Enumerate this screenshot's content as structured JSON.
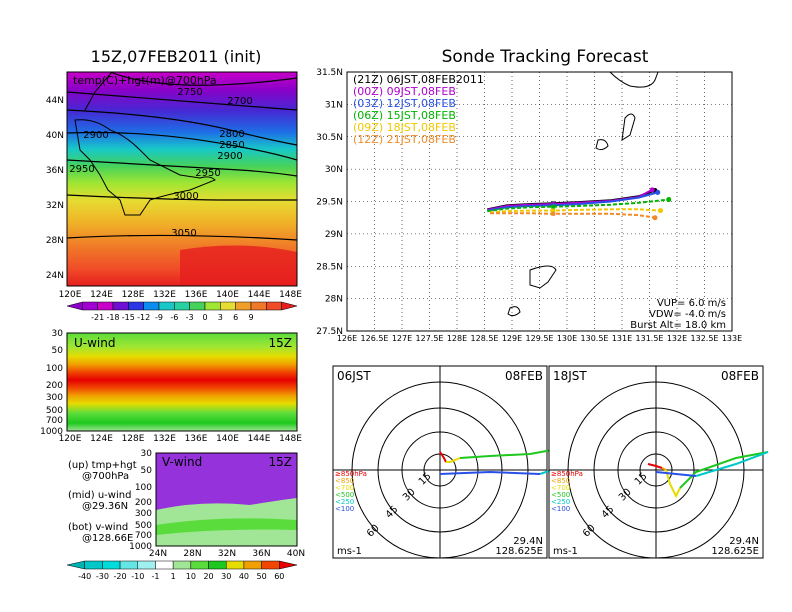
{
  "left_panel": {
    "title": "15Z,07FEB2011 (init)",
    "map_label": "temp(C)+hgt(m)@700hPa",
    "lat_ticks": [
      "44N",
      "40N",
      "36N",
      "32N",
      "28N",
      "24N"
    ],
    "lon_ticks": [
      "120E",
      "124E",
      "128E",
      "132E",
      "136E",
      "140E",
      "144E",
      "148E"
    ],
    "contours": [
      "2750",
      "2700",
      "2800",
      "2850",
      "2900",
      "2900",
      "2950",
      "2950",
      "3000",
      "3050"
    ],
    "temp_colorbar": [
      "-21",
      "-18",
      "-15",
      "-12",
      "-9",
      "-6",
      "-3",
      "0",
      "3",
      "6",
      "9"
    ],
    "temp_colors": [
      "#8c00c8",
      "#a000d2",
      "#c800c8",
      "#6e0fd2",
      "#2a36e6",
      "#0a8cf0",
      "#18c8c8",
      "#28d2a0",
      "#46d25a",
      "#a0e632",
      "#e6dc32",
      "#f0a028",
      "#f07828",
      "#f04c28",
      "#e61e1e"
    ],
    "uwind": {
      "label": "U-wind",
      "time": "15Z",
      "p_ticks": [
        "30",
        "50",
        "100",
        "200",
        "300",
        "500",
        "700",
        "1000"
      ],
      "lon_ticks": [
        "120E",
        "124E",
        "128E",
        "132E",
        "136E",
        "140E",
        "144E",
        "148E"
      ]
    },
    "vwind": {
      "label": "V-wind",
      "time": "15Z",
      "p_ticks": [
        "30",
        "50",
        "100",
        "200",
        "300",
        "500",
        "700",
        "1000"
      ],
      "lat_ticks": [
        "24N",
        "28N",
        "32N",
        "36N",
        "40N"
      ]
    },
    "legend_lines": [
      "(up) tmp+hgt",
      "@700hPa",
      "(mid) u-wind",
      "@29.36N",
      "(bot) v-wind",
      "@128.66E"
    ],
    "wind_colorbar": [
      "-40",
      "-30",
      "-20",
      "-10",
      "-1",
      "1",
      "10",
      "20",
      "30",
      "40",
      "50",
      "60"
    ],
    "wind_colors": [
      "#00b4b4",
      "#00c8c8",
      "#00dcdc",
      "#64e6e6",
      "#a0f0f0",
      "#ffffff",
      "#a0e696",
      "#5adc3c",
      "#1ec81e",
      "#e6dc00",
      "#f0a000",
      "#f04600",
      "#e60000"
    ]
  },
  "forecast": {
    "title": "Sonde Tracking Forecast",
    "lat_ticks": [
      "31.5N",
      "31N",
      "30.5N",
      "30N",
      "29.5N",
      "29N",
      "28.5N",
      "28N",
      "27.5N"
    ],
    "lon_ticks": [
      "126E",
      "126.5E",
      "127E",
      "127.5E",
      "128E",
      "128.5E",
      "129E",
      "129.5E",
      "130E",
      "130.5E",
      "131E",
      "131.5E",
      "132E",
      "132.5E",
      "133E"
    ],
    "legend": [
      {
        "text": "(21Z) 06JST,08FEB2011",
        "color": "#000000"
      },
      {
        "text": "(00Z) 09JST,08FEB",
        "color": "#b000d0"
      },
      {
        "text": "(03Z) 12JST,08FEB",
        "color": "#2850e6"
      },
      {
        "text": "(06Z) 15JST,08FEB",
        "color": "#00b400"
      },
      {
        "text": "(09Z) 18JST,08FEB",
        "color": "#f0c800"
      },
      {
        "text": "(12Z) 21JST,08FEB",
        "color": "#f08c28"
      }
    ],
    "info": [
      "VUP= 6.0 m/s",
      "VDW= -4.0 m/s",
      "Burst Alt= 18.0 km"
    ],
    "chart_data": {
      "type": "line",
      "xlim": [
        126,
        133
      ],
      "ylim": [
        27.5,
        31.5
      ],
      "series": [
        {
          "name": "(21Z) 06JST,08FEB2011",
          "color": "#000000",
          "x": [
            128.55,
            128.9,
            129.3,
            129.7,
            130.2,
            130.8,
            131.3,
            131.6
          ],
          "y": [
            29.38,
            29.44,
            29.46,
            29.47,
            29.49,
            29.52,
            29.58,
            29.67
          ]
        },
        {
          "name": "(00Z) 09JST,08FEB",
          "color": "#b000d0",
          "x": [
            128.55,
            128.9,
            129.3,
            129.7,
            130.2,
            130.8,
            131.3,
            131.55
          ],
          "y": [
            29.37,
            29.43,
            29.45,
            29.46,
            29.48,
            29.51,
            29.57,
            29.68
          ]
        },
        {
          "name": "(03Z) 12JST,08FEB",
          "color": "#2850e6",
          "x": [
            128.55,
            128.9,
            129.3,
            129.7,
            130.2,
            130.8,
            131.3,
            131.65
          ],
          "y": [
            29.36,
            29.41,
            29.43,
            29.44,
            29.46,
            29.5,
            29.56,
            29.64
          ]
        },
        {
          "name": "(06Z) 15JST,08FEB",
          "color": "#00b400",
          "x": [
            128.55,
            128.9,
            129.3,
            129.7,
            130.2,
            130.8,
            131.3,
            131.85
          ],
          "y": [
            29.35,
            29.39,
            29.41,
            29.42,
            29.43,
            29.45,
            29.48,
            29.53
          ]
        },
        {
          "name": "(09Z) 18JST,08FEB",
          "color": "#f0c800",
          "x": [
            128.6,
            128.9,
            129.3,
            129.7,
            130.2,
            130.8,
            131.3,
            131.7
          ],
          "y": [
            29.33,
            29.35,
            29.36,
            29.36,
            29.37,
            29.38,
            29.38,
            29.36
          ]
        },
        {
          "name": "(12Z) 21JST,08FEB",
          "color": "#f08c28",
          "x": [
            128.6,
            128.9,
            129.3,
            129.7,
            130.2,
            130.8,
            131.3,
            131.6
          ],
          "y": [
            29.32,
            29.32,
            29.32,
            29.31,
            29.31,
            29.31,
            29.29,
            29.25
          ]
        }
      ]
    }
  },
  "hodo1": {
    "time": "06JST",
    "date": "08FEB",
    "lat": "29.4N",
    "lon": "128.625E",
    "unit": "ms-1",
    "rings": [
      "15",
      "30",
      "45",
      "60"
    ],
    "levels": [
      {
        "t": "≥850hPa",
        "c": "#e60000"
      },
      {
        "t": "<850",
        "c": "#f0a000"
      },
      {
        "t": "<700",
        "c": "#e6dc00"
      },
      {
        "t": "<500",
        "c": "#1ec81e"
      },
      {
        "t": "<250",
        "c": "#00c8c8"
      },
      {
        "t": "<100",
        "c": "#2850e6"
      }
    ]
  },
  "hodo2": {
    "time": "18JST",
    "date": "08FEB",
    "lat": "29.4N",
    "lon": "128.625E",
    "unit": "ms-1",
    "rings": [
      "15",
      "30",
      "45",
      "60"
    ],
    "levels": [
      {
        "t": "≥850hPa",
        "c": "#e60000"
      },
      {
        "t": "<850",
        "c": "#f0a000"
      },
      {
        "t": "<700",
        "c": "#e6dc00"
      },
      {
        "t": "<500",
        "c": "#1ec81e"
      },
      {
        "t": "<250",
        "c": "#00c8c8"
      },
      {
        "t": "<100",
        "c": "#2850e6"
      }
    ]
  }
}
